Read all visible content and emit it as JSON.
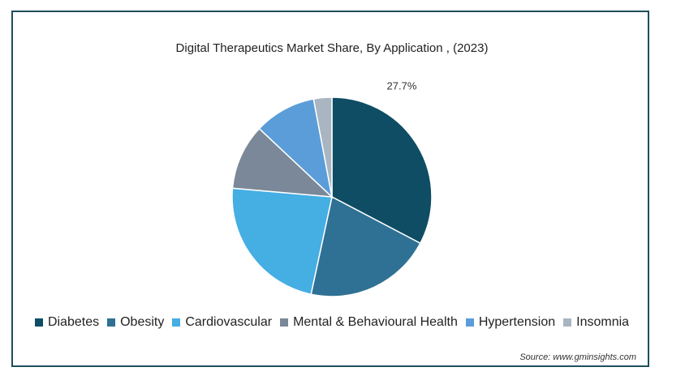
{
  "chart_data": {
    "type": "pie",
    "title": "Digital Therapeutics Market Share, By Application , (2023)",
    "slices": [
      {
        "name": "Diabetes",
        "value": 27.7,
        "label": "27.7%",
        "color": "#0e4d64"
      },
      {
        "name": "Obesity",
        "value": 17.5,
        "color": "#2f7194"
      },
      {
        "name": "Cardiovascular",
        "value": 19.5,
        "color": "#45aee3"
      },
      {
        "name": "Mental & Behavioural Health",
        "value": 9.0,
        "color": "#7a8899"
      },
      {
        "name": "Hypertension",
        "value": 8.5,
        "color": "#5b9dd9"
      },
      {
        "name": "Insomnia",
        "value": 2.5,
        "color": "#a9b6c1"
      }
    ],
    "legend_position": "bottom"
  },
  "source": "Source: www.gminsights.com"
}
